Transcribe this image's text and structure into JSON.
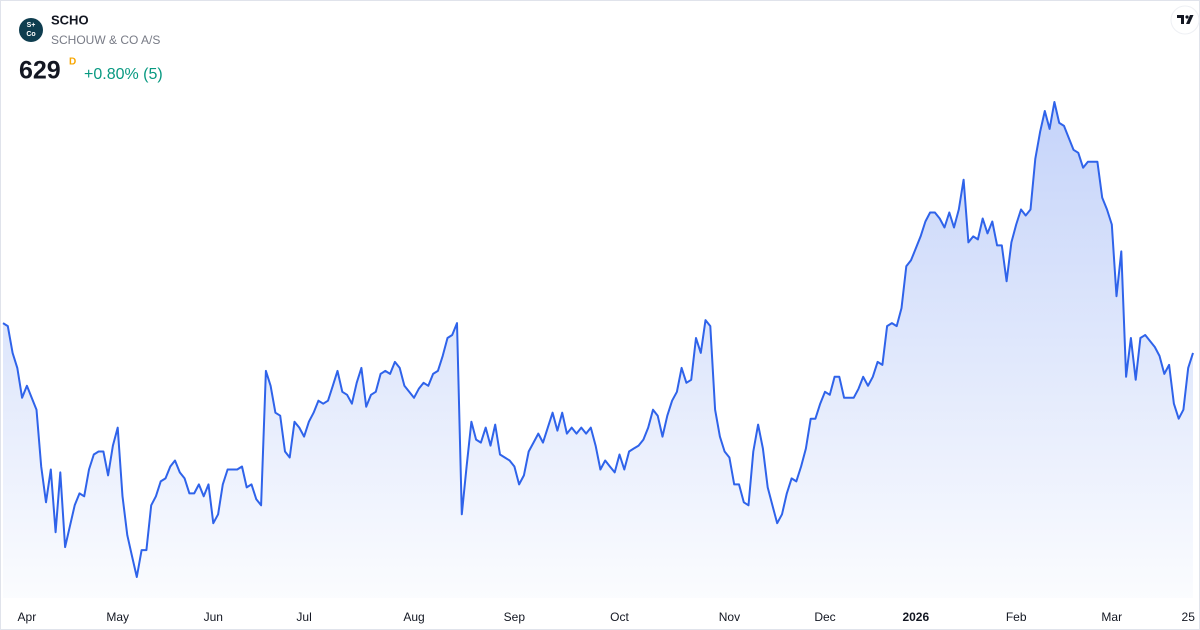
{
  "chart_data": {
    "type": "area",
    "title": "SCHO",
    "subtitle": "SCHOUW & CO A/S",
    "logo": [
      "S+",
      "Co"
    ],
    "last_price": 629,
    "interval": "D",
    "change": "+0.80% (5)",
    "color": "#2f63ea",
    "values": [
      639,
      638,
      629,
      624,
      614,
      618,
      614,
      610,
      591,
      579,
      590,
      569,
      589,
      564,
      571,
      578,
      582,
      581,
      590,
      595,
      596,
      596,
      588,
      598,
      604,
      581,
      568,
      561,
      554,
      563,
      563,
      578,
      581,
      586,
      587,
      591,
      593,
      589,
      587,
      582,
      582,
      585,
      581,
      585,
      572,
      575,
      585,
      590,
      590,
      590,
      591,
      584,
      585,
      580,
      578,
      623,
      618,
      609,
      608,
      596,
      594,
      606,
      604,
      601,
      606,
      609,
      613,
      612,
      613,
      618,
      623,
      616,
      615,
      612,
      619,
      624,
      611,
      615,
      616,
      622,
      623,
      622,
      626,
      624,
      618,
      616,
      614,
      617,
      619,
      618,
      622,
      623,
      628,
      634,
      635,
      639,
      575,
      591,
      606,
      600,
      599,
      604,
      598,
      605,
      595,
      594,
      593,
      591,
      585,
      588,
      596,
      599,
      602,
      599,
      604,
      609,
      603,
      609,
      602,
      604,
      602,
      604,
      602,
      604,
      598,
      590,
      593,
      591,
      589,
      595,
      590,
      596,
      597,
      598,
      600,
      604,
      610,
      608,
      601,
      608,
      613,
      616,
      624,
      619,
      620,
      634,
      629,
      640,
      638,
      610,
      601,
      596,
      594,
      585,
      585,
      579,
      578,
      596,
      605,
      597,
      584,
      578,
      572,
      575,
      582,
      587,
      586,
      591,
      597,
      607,
      607,
      612,
      616,
      615,
      621,
      621,
      614,
      614,
      614,
      617,
      621,
      618,
      621,
      626,
      625,
      638,
      639,
      638,
      644,
      658,
      660,
      664,
      668,
      673,
      676,
      676,
      674,
      671,
      676,
      671,
      677,
      687,
      666,
      668,
      667,
      674,
      669,
      673,
      665,
      665,
      653,
      666,
      672,
      677,
      675,
      677,
      694,
      703,
      710,
      704,
      713,
      706,
      705,
      701,
      697,
      696,
      691,
      693,
      693,
      693,
      681,
      677,
      672,
      648,
      663,
      621,
      634,
      620,
      634,
      635,
      633,
      631,
      628,
      622,
      625,
      612,
      607,
      610,
      624,
      629
    ],
    "xticks": [
      {
        "value": 5,
        "label": "Apr"
      },
      {
        "value": 24,
        "label": "May"
      },
      {
        "value": 44,
        "label": "Jun"
      },
      {
        "value": 63,
        "label": "Jul"
      },
      {
        "value": 86,
        "label": "Aug"
      },
      {
        "value": 107,
        "label": "Sep"
      },
      {
        "value": 129,
        "label": "Oct"
      },
      {
        "value": 152,
        "label": "Nov"
      },
      {
        "value": 172,
        "label": "Dec"
      },
      {
        "value": 191,
        "label": "2026"
      },
      {
        "value": 212,
        "label": "Feb"
      },
      {
        "value": 232,
        "label": "Mar"
      },
      {
        "value": 248,
        "label": "25"
      }
    ]
  }
}
